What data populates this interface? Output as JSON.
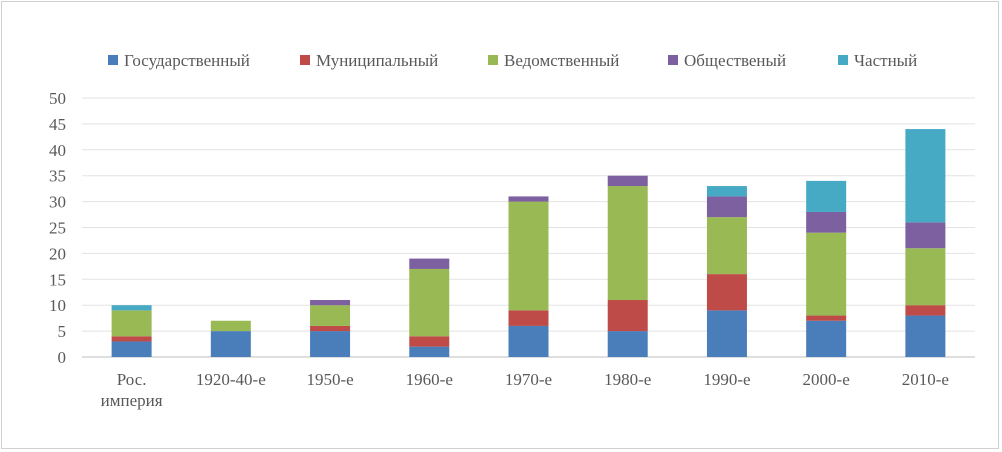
{
  "chart_data": {
    "type": "bar",
    "stacked": true,
    "categories": [
      [
        "Рос.",
        "империя"
      ],
      [
        "1920-40-е"
      ],
      [
        "1950-е"
      ],
      [
        "1960-е"
      ],
      [
        "1970-е"
      ],
      [
        "1980-е"
      ],
      [
        "1990-е"
      ],
      [
        "2000-е"
      ],
      [
        "2010-е"
      ]
    ],
    "series": [
      {
        "name": "Государственный",
        "color": "#4a7ebb",
        "values": [
          3,
          5,
          5,
          2,
          6,
          5,
          9,
          7,
          8
        ]
      },
      {
        "name": "Муниципальный",
        "color": "#be4b48",
        "values": [
          1,
          0,
          1,
          2,
          3,
          6,
          7,
          1,
          2
        ]
      },
      {
        "name": "Ведомственный",
        "color": "#98b954",
        "values": [
          5,
          2,
          4,
          13,
          21,
          22,
          11,
          16,
          11
        ]
      },
      {
        "name": "Общественый",
        "color": "#7d60a0",
        "values": [
          0,
          0,
          1,
          2,
          1,
          2,
          4,
          4,
          5
        ]
      },
      {
        "name": "Частный",
        "color": "#46aac5",
        "values": [
          1,
          0,
          0,
          0,
          0,
          0,
          2,
          6,
          18
        ]
      }
    ],
    "ylim": [
      0,
      50
    ],
    "yticks": [
      0,
      5,
      10,
      15,
      20,
      25,
      30,
      35,
      40,
      45,
      50
    ],
    "grid": true,
    "legend": "top",
    "title": "",
    "xlabel": "",
    "ylabel": ""
  }
}
